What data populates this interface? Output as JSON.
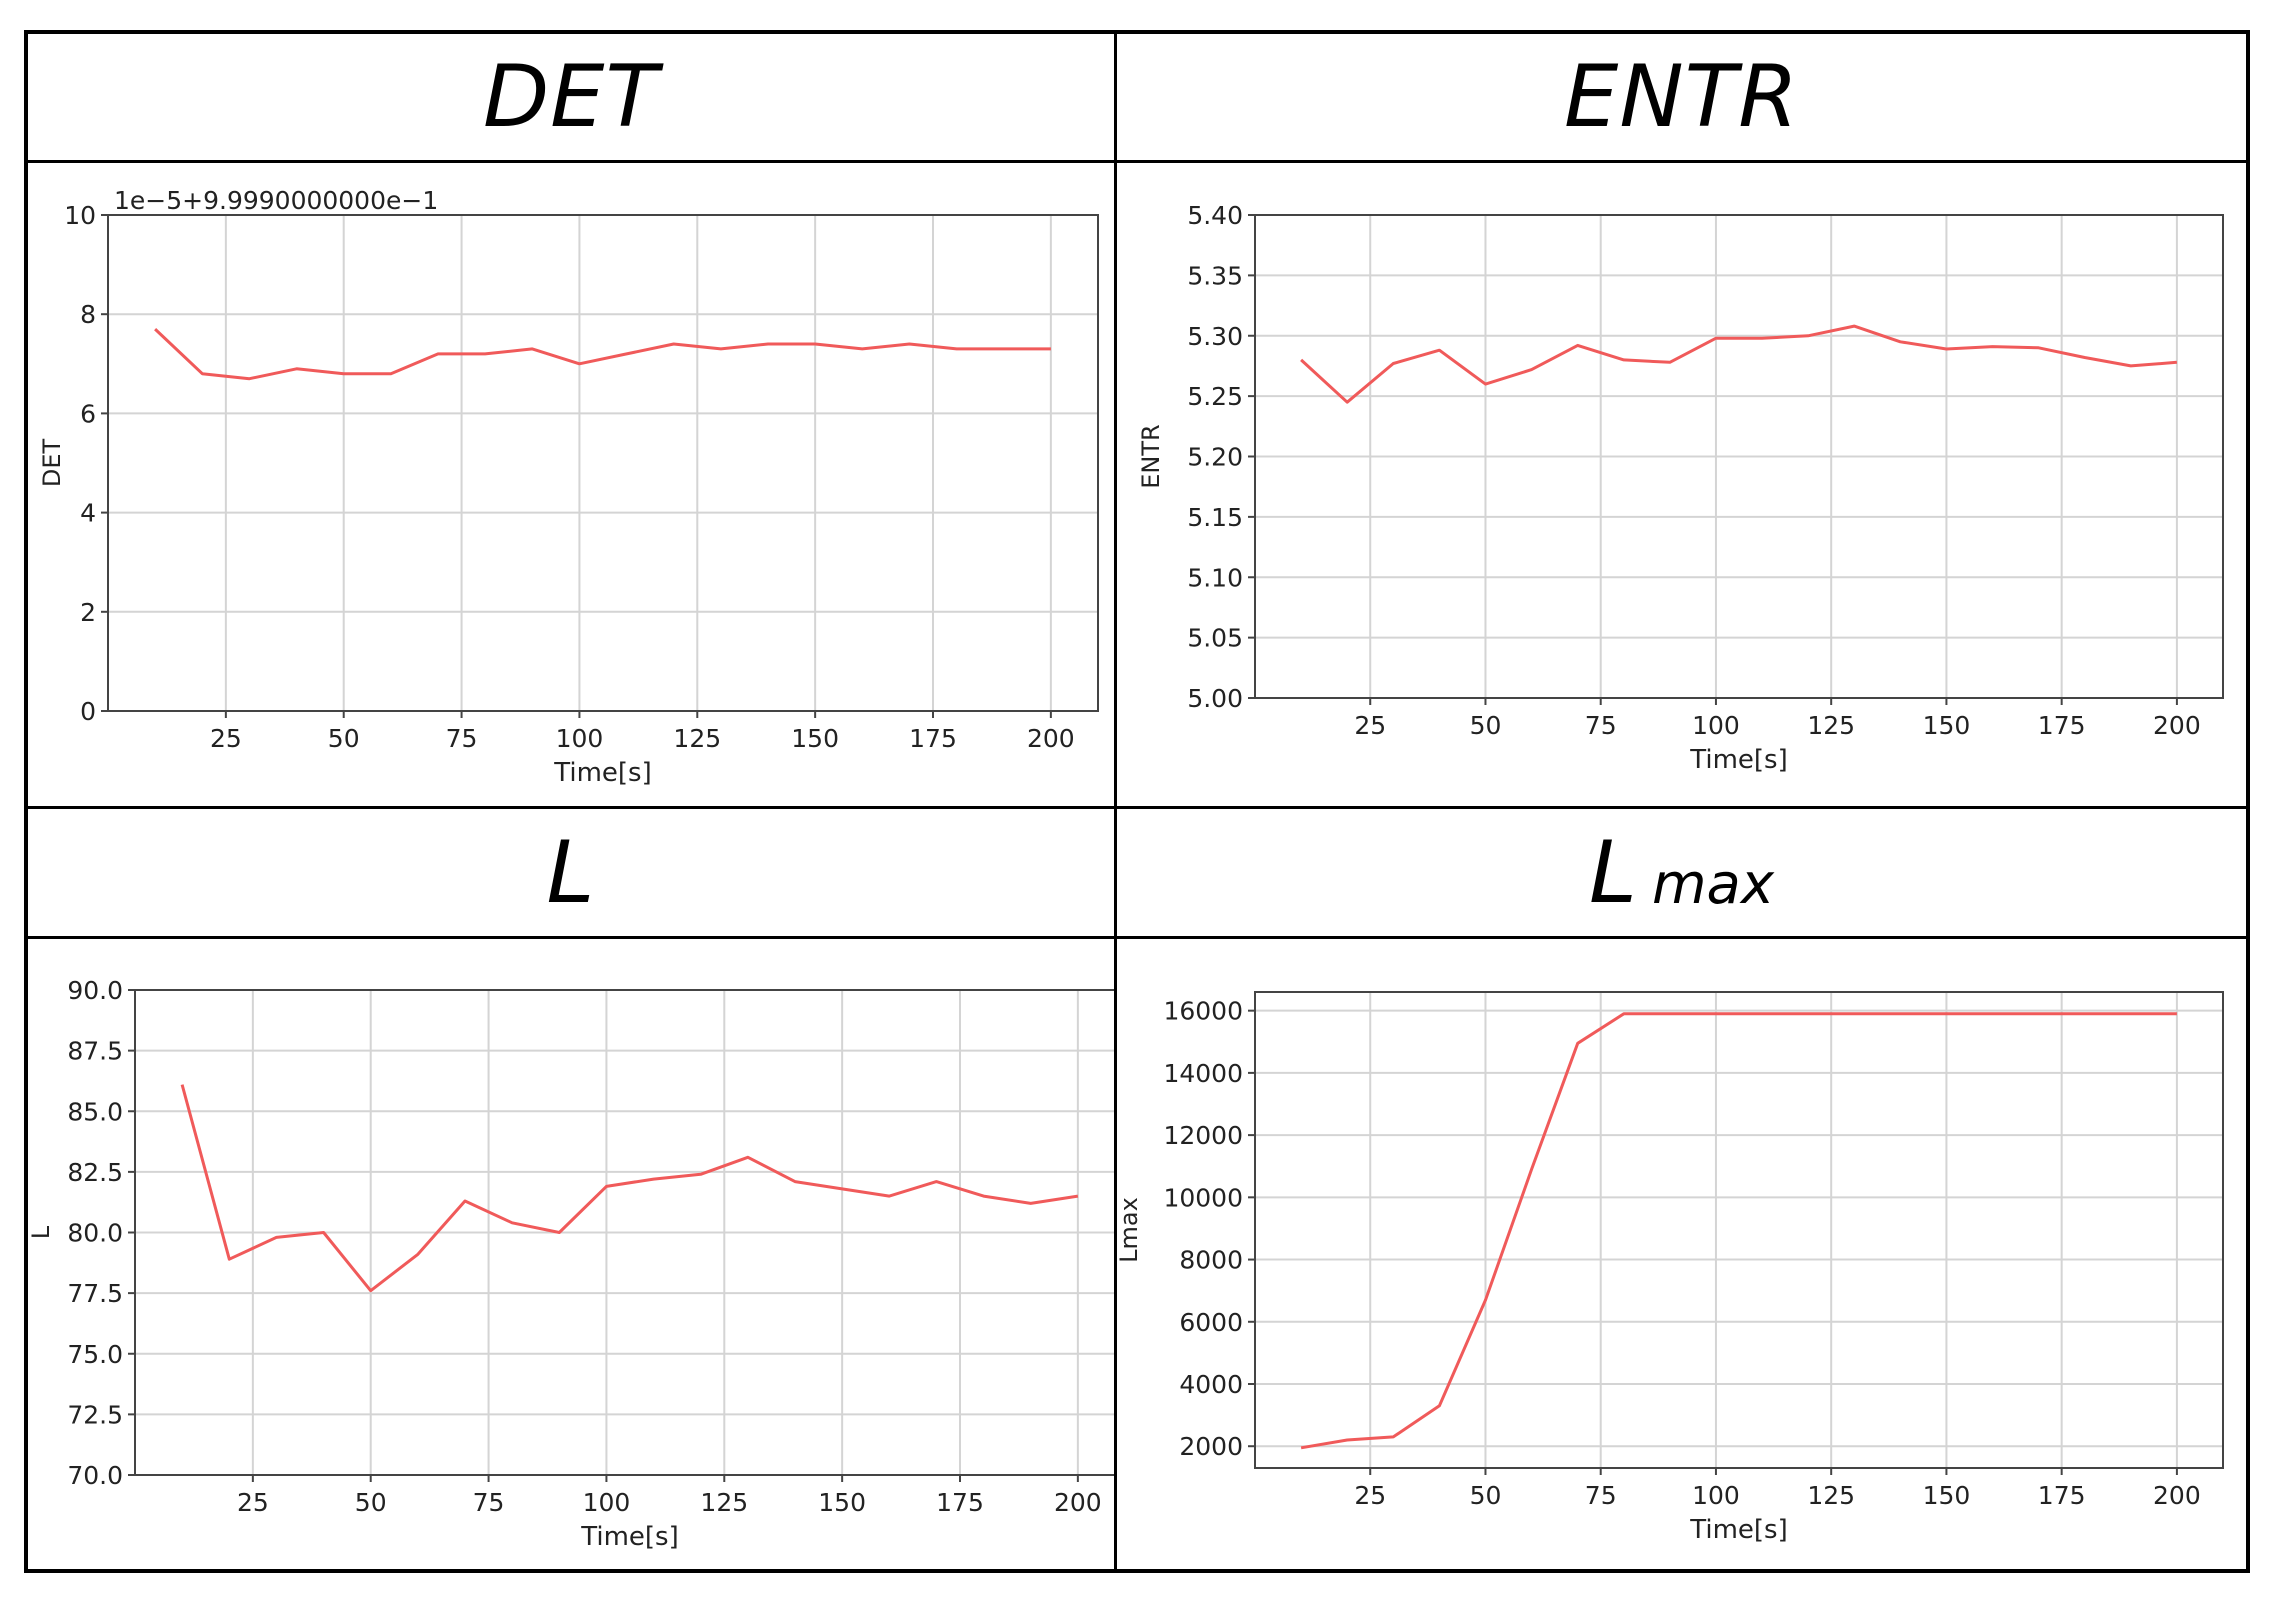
{
  "headers": {
    "det": {
      "main": "DET",
      "sub": ""
    },
    "entr": {
      "main": "ENTR",
      "sub": ""
    },
    "l": {
      "main": "L",
      "sub": ""
    },
    "lmax": {
      "main": "L",
      "sub": "max"
    }
  },
  "line_color": "#f05a5a",
  "chart_data": [
    {
      "type": "line",
      "id": "det",
      "ylabel": "DET",
      "xlabel": "Time[s]",
      "offset_text": "1e−5+9.9990000000e−1",
      "xlim": [
        0,
        210
      ],
      "ylim": [
        0,
        10
      ],
      "xticks": [
        25,
        50,
        75,
        100,
        125,
        150,
        175,
        200
      ],
      "yticks": [
        0,
        2,
        4,
        6,
        8,
        10
      ],
      "ytick_labels": [
        "0",
        "2",
        "4",
        "6",
        "8",
        "10"
      ],
      "grid": true,
      "series": [
        {
          "x": [
            10,
            20,
            30,
            40,
            50,
            60,
            70,
            80,
            90,
            100,
            110,
            120,
            130,
            140,
            150,
            160,
            170,
            180,
            190,
            200
          ],
          "y": [
            7.7,
            6.8,
            6.7,
            6.9,
            6.8,
            6.8,
            7.2,
            7.2,
            7.3,
            7.0,
            7.2,
            7.4,
            7.3,
            7.4,
            7.4,
            7.3,
            7.4,
            7.3,
            7.3,
            7.3
          ]
        }
      ]
    },
    {
      "type": "line",
      "id": "entr",
      "ylabel": "ENTR",
      "xlabel": "Time[s]",
      "xlim": [
        0,
        210
      ],
      "ylim": [
        5.0,
        5.4
      ],
      "xticks": [
        25,
        50,
        75,
        100,
        125,
        150,
        175,
        200
      ],
      "yticks": [
        5.0,
        5.05,
        5.1,
        5.15,
        5.2,
        5.25,
        5.3,
        5.35,
        5.4
      ],
      "ytick_labels": [
        "5.00",
        "5.05",
        "5.10",
        "5.15",
        "5.20",
        "5.25",
        "5.30",
        "5.35",
        "5.40"
      ],
      "grid": true,
      "series": [
        {
          "x": [
            10,
            20,
            30,
            40,
            50,
            60,
            70,
            80,
            90,
            100,
            110,
            120,
            130,
            140,
            150,
            160,
            170,
            180,
            190,
            200
          ],
          "y": [
            5.28,
            5.245,
            5.277,
            5.288,
            5.26,
            5.272,
            5.292,
            5.28,
            5.278,
            5.298,
            5.298,
            5.3,
            5.308,
            5.295,
            5.289,
            5.291,
            5.29,
            5.282,
            5.275,
            5.278
          ]
        }
      ]
    },
    {
      "type": "line",
      "id": "l",
      "ylabel": "L",
      "xlabel": "Time[s]",
      "xlim": [
        0,
        210
      ],
      "ylim": [
        70.0,
        90.0
      ],
      "xticks": [
        25,
        50,
        75,
        100,
        125,
        150,
        175,
        200
      ],
      "yticks": [
        70.0,
        72.5,
        75.0,
        77.5,
        80.0,
        82.5,
        85.0,
        87.5,
        90.0
      ],
      "ytick_labels": [
        "70.0",
        "72.5",
        "75.0",
        "77.5",
        "80.0",
        "82.5",
        "85.0",
        "87.5",
        "90.0"
      ],
      "grid": true,
      "series": [
        {
          "x": [
            10,
            20,
            30,
            40,
            50,
            60,
            70,
            80,
            90,
            100,
            110,
            120,
            130,
            140,
            150,
            160,
            170,
            180,
            190,
            200
          ],
          "y": [
            86.1,
            78.9,
            79.8,
            80.0,
            77.6,
            79.1,
            81.3,
            80.4,
            80.0,
            81.9,
            82.2,
            82.4,
            83.1,
            82.1,
            81.8,
            81.5,
            82.1,
            81.5,
            81.2,
            81.5
          ]
        }
      ]
    },
    {
      "type": "line",
      "id": "lmax",
      "ylabel": "Lmax",
      "xlabel": "Time[s]",
      "xlim": [
        0,
        210
      ],
      "ylim": [
        1300,
        16600
      ],
      "xticks": [
        25,
        50,
        75,
        100,
        125,
        150,
        175,
        200
      ],
      "yticks": [
        2000,
        4000,
        6000,
        8000,
        10000,
        12000,
        14000,
        16000
      ],
      "ytick_labels": [
        "2000",
        "4000",
        "6000",
        "8000",
        "10000",
        "12000",
        "14000",
        "16000"
      ],
      "grid": true,
      "series": [
        {
          "x": [
            10,
            20,
            30,
            40,
            50,
            60,
            70,
            80,
            90,
            100,
            110,
            120,
            130,
            140,
            150,
            160,
            170,
            180,
            190,
            200
          ],
          "y": [
            1950,
            2200,
            2300,
            3300,
            6700,
            10900,
            14950,
            15900,
            15900,
            15900,
            15900,
            15900,
            15900,
            15900,
            15900,
            15900,
            15900,
            15900,
            15900,
            15900
          ]
        }
      ]
    }
  ]
}
